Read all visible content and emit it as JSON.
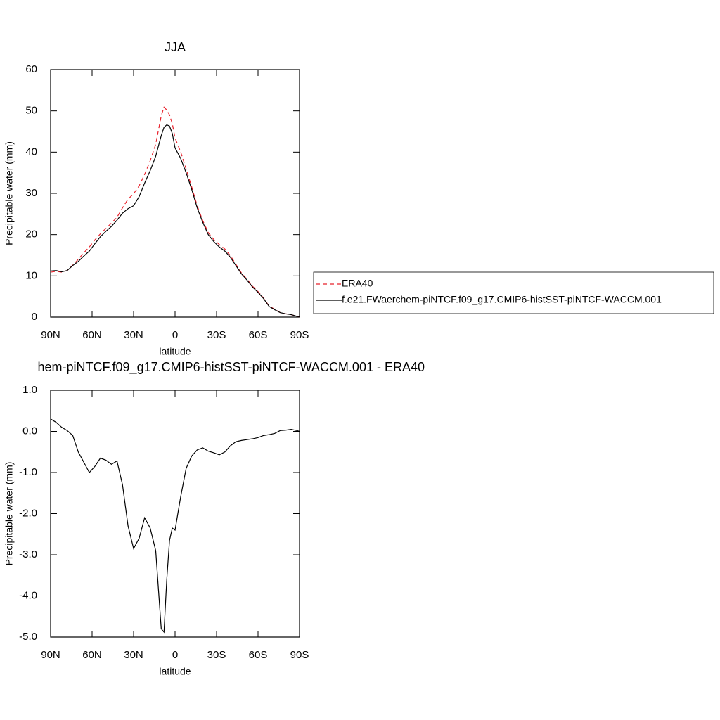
{
  "chart_data": [
    {
      "type": "line",
      "title": "JJA",
      "xlabel": "latitude",
      "ylabel": "Precipitable water (mm)",
      "x": [
        90,
        86,
        82,
        78,
        74,
        70,
        66,
        62,
        58,
        54,
        50,
        46,
        42,
        38,
        34,
        30,
        26,
        22,
        18,
        14,
        10,
        8,
        6,
        4,
        2,
        0,
        -4,
        -8,
        -12,
        -16,
        -20,
        -24,
        -28,
        -32,
        -36,
        -40,
        -44,
        -48,
        -52,
        -56,
        -60,
        -64,
        -68,
        -72,
        -76,
        -80,
        -84,
        -88,
        -90
      ],
      "xlim": [
        90,
        -90
      ],
      "xticks": [
        {
          "value": 90,
          "label": "90N"
        },
        {
          "value": 60,
          "label": "60N"
        },
        {
          "value": 30,
          "label": "30N"
        },
        0,
        {
          "value": -30,
          "label": "30S"
        },
        {
          "value": -60,
          "label": "60S"
        },
        {
          "value": -90,
          "label": "90S"
        }
      ],
      "ylim": [
        0,
        60
      ],
      "yticks": [
        0,
        10,
        20,
        30,
        40,
        50,
        60
      ],
      "legend": "right",
      "series": [
        {
          "name": "ERA40",
          "color": "#e8202a",
          "style": "dashed",
          "values": [
            10.9,
            11.1,
            10.9,
            11.3,
            12.6,
            14.0,
            15.6,
            17.0,
            18.7,
            20.2,
            21.5,
            22.8,
            24.2,
            26.5,
            28.6,
            29.9,
            31.8,
            34.6,
            37.9,
            41.9,
            48.8,
            50.9,
            50.2,
            49.0,
            46.9,
            43.4,
            40.1,
            35.9,
            31.6,
            27.0,
            23.4,
            20.5,
            18.8,
            17.6,
            16.5,
            14.9,
            12.8,
            10.7,
            9.2,
            7.5,
            6.2,
            4.6,
            2.7,
            1.9,
            1.1,
            0.8,
            0.6,
            0.2,
            0.05
          ]
        },
        {
          "name": "f.e21.FWaerchem-piNTCF.f09_g17.CMIP6-histSST-piNTCF-WACCM.001",
          "color": "#000000",
          "style": "solid",
          "values": [
            11.2,
            11.3,
            11.0,
            11.3,
            12.5,
            13.5,
            14.8,
            16.0,
            17.8,
            19.5,
            20.8,
            22.0,
            23.5,
            25.2,
            26.3,
            27.0,
            29.2,
            32.5,
            35.5,
            39.0,
            44.0,
            46.0,
            46.6,
            46.3,
            44.5,
            41.0,
            38.5,
            35.0,
            31.0,
            26.5,
            23.0,
            20.0,
            18.3,
            17.0,
            16.0,
            14.5,
            12.5,
            10.5,
            9.0,
            7.3,
            6.0,
            4.5,
            2.6,
            1.8,
            1.1,
            0.8,
            0.6,
            0.2,
            0.05
          ]
        }
      ]
    },
    {
      "type": "line",
      "title": "hem-piNTCF.f09_g17.CMIP6-histSST-piNTCF-WACCM.001 - ERA40",
      "xlabel": "latitude",
      "ylabel": "Precipitable water (mm)",
      "x": [
        90,
        86,
        82,
        78,
        74,
        70,
        66,
        62,
        58,
        54,
        50,
        46,
        42,
        38,
        34,
        30,
        26,
        22,
        18,
        14,
        10,
        8,
        6,
        4,
        2,
        0,
        -4,
        -8,
        -12,
        -16,
        -20,
        -24,
        -28,
        -32,
        -36,
        -40,
        -44,
        -48,
        -52,
        -56,
        -60,
        -64,
        -68,
        -72,
        -76,
        -80,
        -84,
        -88,
        -90
      ],
      "xlim": [
        90,
        -90
      ],
      "xticks": [
        {
          "value": 90,
          "label": "90N"
        },
        {
          "value": 60,
          "label": "60N"
        },
        {
          "value": 30,
          "label": "30N"
        },
        0,
        {
          "value": -30,
          "label": "30S"
        },
        {
          "value": -60,
          "label": "60S"
        },
        {
          "value": -90,
          "label": "90S"
        }
      ],
      "ylim": [
        -5,
        1
      ],
      "yticks": [
        {
          "value": -5,
          "label": "-5.0"
        },
        {
          "value": -4,
          "label": "-4.0"
        },
        {
          "value": -3,
          "label": "-3.0"
        },
        {
          "value": -2,
          "label": "-2.0"
        },
        {
          "value": -1,
          "label": "-1.0"
        },
        {
          "value": 0,
          "label": "0.0"
        },
        {
          "value": 1,
          "label": "1.0"
        }
      ],
      "series": [
        {
          "color": "#000000",
          "style": "solid",
          "values": [
            0.3,
            0.22,
            0.1,
            0.02,
            -0.1,
            -0.5,
            -0.75,
            -1.0,
            -0.85,
            -0.65,
            -0.7,
            -0.8,
            -0.72,
            -1.3,
            -2.3,
            -2.85,
            -2.6,
            -2.1,
            -2.35,
            -2.9,
            -4.8,
            -4.88,
            -3.6,
            -2.65,
            -2.35,
            -2.4,
            -1.6,
            -0.9,
            -0.6,
            -0.45,
            -0.4,
            -0.48,
            -0.52,
            -0.57,
            -0.5,
            -0.35,
            -0.25,
            -0.22,
            -0.2,
            -0.18,
            -0.15,
            -0.1,
            -0.08,
            -0.05,
            0.02,
            0.03,
            0.05,
            0.02,
            0.0
          ]
        }
      ]
    }
  ]
}
